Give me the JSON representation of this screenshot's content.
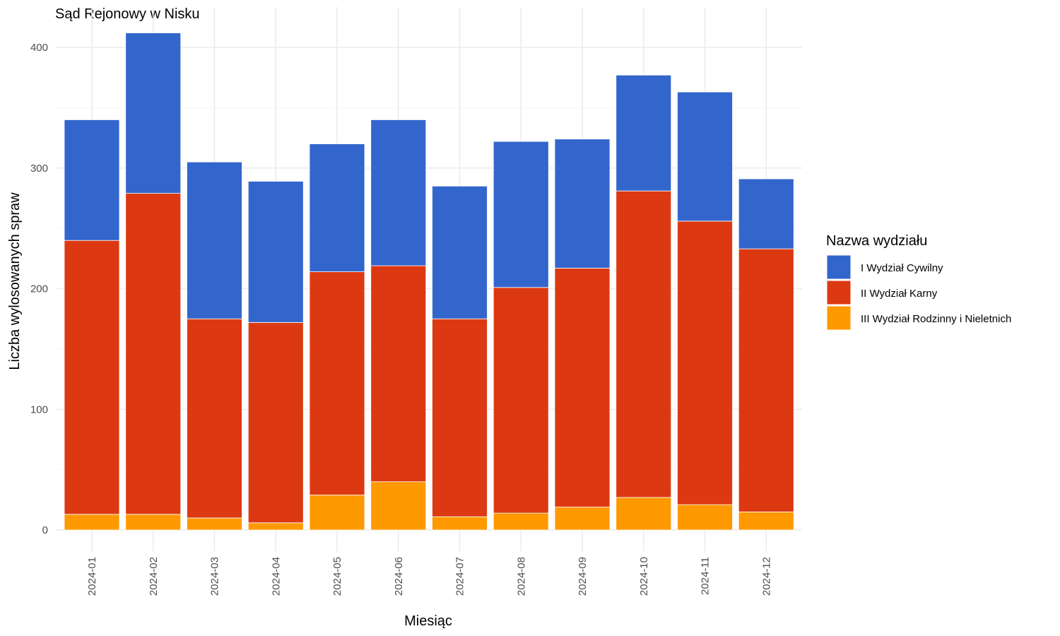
{
  "chart_data": {
    "type": "bar",
    "stacked": true,
    "title": "Sąd Rejonowy w Nisku",
    "xlabel": "Miesiąc",
    "ylabel": "Liczba wylosowanych spraw",
    "ylim": [
      0,
      420
    ],
    "yticks": [
      0,
      100,
      200,
      300,
      400
    ],
    "grid": true,
    "legend_position": "right",
    "legend_title": "Nazwa wydziału",
    "categories": [
      "2024-01",
      "2024-02",
      "2024-03",
      "2024-04",
      "2024-05",
      "2024-06",
      "2024-07",
      "2024-08",
      "2024-09",
      "2024-10",
      "2024-11",
      "2024-12"
    ],
    "series": [
      {
        "name": "III Wydział Rodzinny i Nieletnich",
        "color": "#ff9900",
        "values": [
          13,
          13,
          10,
          6,
          29,
          40,
          11,
          14,
          19,
          27,
          21,
          15
        ]
      },
      {
        "name": "II Wydział Karny",
        "color": "#dc3912",
        "values": [
          227,
          266,
          165,
          166,
          185,
          179,
          164,
          187,
          198,
          254,
          235,
          218
        ]
      },
      {
        "name": "I Wydział Cywilny",
        "color": "#3366cc",
        "values": [
          100,
          133,
          130,
          117,
          106,
          121,
          110,
          121,
          107,
          96,
          107,
          58
        ]
      }
    ],
    "legend_order": [
      "I Wydział Cywilny",
      "II Wydział Karny",
      "III Wydział Rodzinny i Nieletnich"
    ]
  }
}
